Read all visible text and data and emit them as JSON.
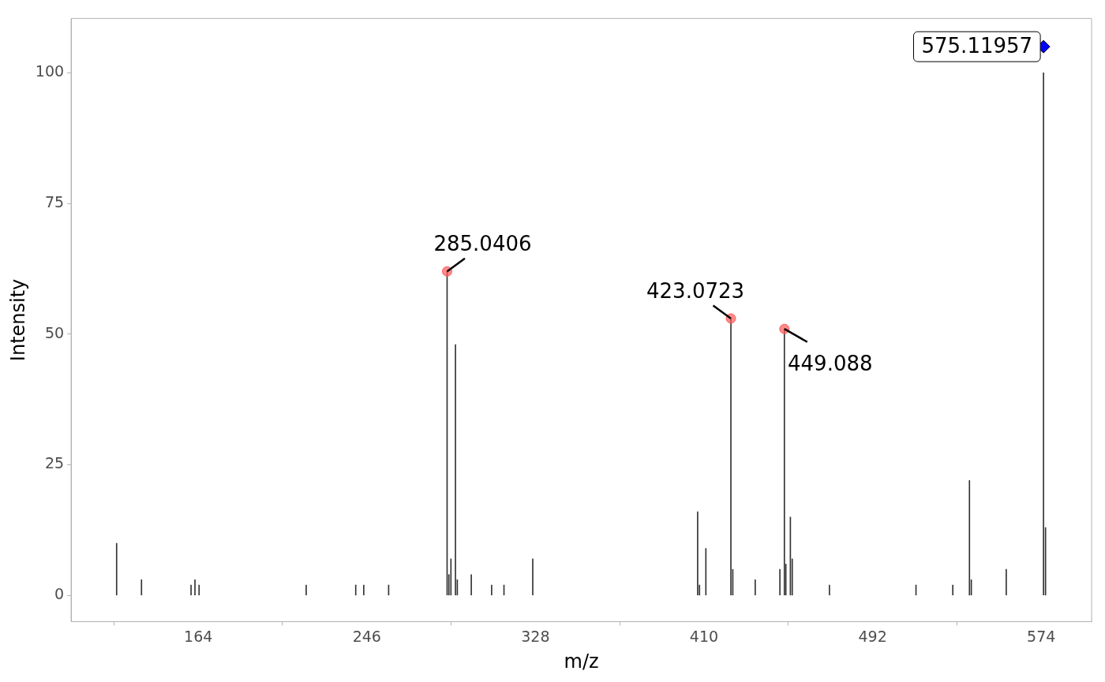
{
  "chart_data": {
    "type": "bar",
    "xlabel": "m/z",
    "ylabel": "Intensity",
    "xlim": [
      102.15,
      598.5
    ],
    "ylim": [
      -5,
      110.4
    ],
    "xticks": [
      164,
      246,
      328,
      410,
      492,
      574
    ],
    "yticks": [
      0,
      25,
      50,
      75,
      100
    ],
    "series": [
      {
        "color": "#333333",
        "x": [
          124.3,
          136.4,
          160.5,
          162.4,
          164.4,
          216.5,
          240.6,
          244.5,
          256.6,
          285.0406,
          285.9,
          286.9,
          289.1,
          290.0,
          296.8,
          306.7,
          312.7,
          326.7,
          406.9,
          407.8,
          410.9,
          423.0723,
          424.0,
          434.9,
          446.9,
          449.088,
          449.8,
          452.0,
          452.9,
          471.0,
          513.1,
          531.0,
          539.1,
          540.0,
          557.0,
          575.11957,
          576.1
        ],
        "values": [
          10,
          3,
          2,
          3,
          2,
          2,
          2,
          2,
          2,
          62,
          4,
          7,
          48,
          3,
          4,
          2,
          2,
          7,
          16,
          2,
          9,
          53,
          5,
          3,
          5,
          51,
          6,
          15,
          7,
          2,
          2,
          2,
          22,
          3,
          5,
          100,
          13
        ]
      },
      {
        "type": "scatter",
        "marker": "circle",
        "color": "#ff5a5a",
        "x": [
          285.0406,
          423.0723,
          449.088
        ],
        "values": [
          62,
          53,
          51
        ]
      },
      {
        "type": "scatter",
        "marker": "diamond",
        "color": "#0000ff",
        "x": [
          575.11957
        ],
        "values": [
          105
        ]
      }
    ],
    "annotations": [
      {
        "text": "285.0406",
        "x": 285.0406,
        "y": 62
      },
      {
        "text": "423.0723",
        "x": 423.0723,
        "y": 53
      },
      {
        "text": "449.088",
        "x": 449.088,
        "y": 51
      },
      {
        "text": "575.11957",
        "x": 575.11957,
        "y": 105
      }
    ]
  }
}
